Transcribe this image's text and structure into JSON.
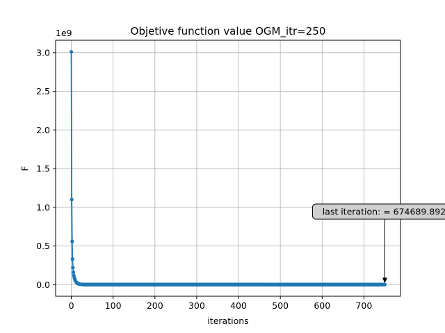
{
  "chart_data": {
    "type": "line",
    "title": "Objetive function value OGM_itr=250",
    "xlabel": "iterations",
    "ylabel": "F",
    "y_offset_label": "1e9",
    "xlim": [
      -37.5,
      787.5
    ],
    "ylim": [
      -0.15,
      3.16
    ],
    "y_scale": 1000000000,
    "x_ticks": [
      0,
      100,
      200,
      300,
      400,
      500,
      600,
      700
    ],
    "x_tick_labels": [
      "0",
      "100",
      "200",
      "300",
      "400",
      "500",
      "600",
      "700"
    ],
    "y_ticks": [
      0.0,
      0.5,
      1.0,
      1.5,
      2.0,
      2.5,
      3.0
    ],
    "y_tick_labels": [
      "0.0",
      "0.5",
      "1.0",
      "1.5",
      "2.0",
      "2.5",
      "3.0"
    ],
    "grid": true,
    "series_color": "#1f77b4",
    "n_points": 751,
    "head_points": {
      "x": [
        0,
        1,
        2,
        3,
        4,
        5,
        6,
        7,
        8,
        9,
        10,
        11,
        12,
        13,
        14,
        15,
        16,
        17,
        18,
        19,
        20,
        22,
        24,
        26,
        28,
        30
      ],
      "y": [
        3.01,
        1.1,
        0.56,
        0.33,
        0.22,
        0.16,
        0.12,
        0.095,
        0.075,
        0.06,
        0.048,
        0.039,
        0.031,
        0.025,
        0.02,
        0.016,
        0.013,
        0.011,
        0.009,
        0.0075,
        0.0062,
        0.0045,
        0.0033,
        0.0025,
        0.0019,
        0.0015
      ]
    },
    "tail_value": 0.000674689892,
    "annotation": {
      "text": "last iteration: = 674689.892",
      "x": 750,
      "y": 0.000674689892
    }
  }
}
